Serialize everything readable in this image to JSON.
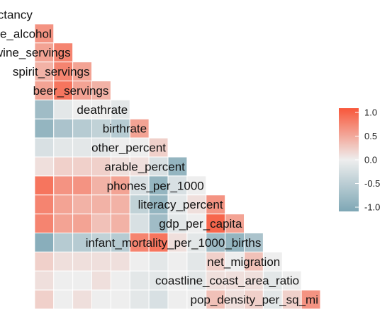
{
  "chart_data": {
    "type": "heatmap",
    "variables": [
      "life_expectancy",
      "total_litres_of_pure_alcohol",
      "wine_servings",
      "spirit_servings",
      "beer_servings",
      "deathrate",
      "birthrate",
      "other_percent",
      "arable_percent",
      "phones_per_1000",
      "literacy_percent",
      "gdp_per_capita",
      "infant_mortality_per_1000_births",
      "net_migration",
      "coastline_coast_area_ratio",
      "pop_density_per_sq_mi"
    ],
    "matrix": [
      [],
      [
        0.6
      ],
      [
        0.5,
        0.7
      ],
      [
        0.4,
        0.7,
        0.5
      ],
      [
        0.5,
        0.8,
        0.5,
        0.4
      ],
      [
        -0.7,
        -0.1,
        0.0,
        0.0,
        -0.1
      ],
      [
        -0.8,
        -0.6,
        -0.5,
        -0.4,
        -0.5,
        0.5
      ],
      [
        -0.2,
        -0.1,
        -0.1,
        -0.1,
        0.0,
        0.0,
        0.2
      ],
      [
        0.1,
        0.2,
        0.2,
        0.2,
        0.1,
        0.1,
        -0.2,
        -0.8
      ],
      [
        0.8,
        0.6,
        0.6,
        0.4,
        0.5,
        -0.2,
        -0.8,
        -0.2,
        0.0
      ],
      [
        0.7,
        0.5,
        0.4,
        0.4,
        0.4,
        -0.4,
        -0.8,
        -0.1,
        0.1,
        0.6
      ],
      [
        0.7,
        0.5,
        0.5,
        0.3,
        0.4,
        -0.2,
        -0.7,
        -0.1,
        0.0,
        0.9,
        0.5
      ],
      [
        -0.9,
        -0.5,
        -0.5,
        -0.4,
        -0.5,
        0.7,
        0.8,
        0.1,
        -0.1,
        -0.7,
        -0.8,
        -0.6
      ],
      [
        0.2,
        0.1,
        0.1,
        0.1,
        0.1,
        0.0,
        -0.1,
        0.0,
        -0.1,
        0.2,
        0.0,
        0.3,
        0.0
      ],
      [
        0.1,
        0.0,
        0.0,
        0.1,
        0.0,
        -0.1,
        -0.1,
        0.0,
        -0.1,
        0.1,
        0.1,
        0.1,
        -0.1,
        0.0
      ],
      [
        0.2,
        0.0,
        0.1,
        0.0,
        0.0,
        -0.1,
        -0.2,
        0.0,
        0.0,
        0.3,
        0.1,
        0.2,
        -0.1,
        0.2,
        0.6
      ]
    ],
    "colors": {
      "negative": "#7EA7B5",
      "zero": "#EEEEEE",
      "positive": "#F8573A"
    },
    "legend": {
      "range": [
        -1.0,
        1.0
      ],
      "ticks": [
        "1.0",
        "0.5",
        "0.0",
        "-0.5",
        "-1.0"
      ],
      "placement": "right"
    },
    "grid": true
  }
}
